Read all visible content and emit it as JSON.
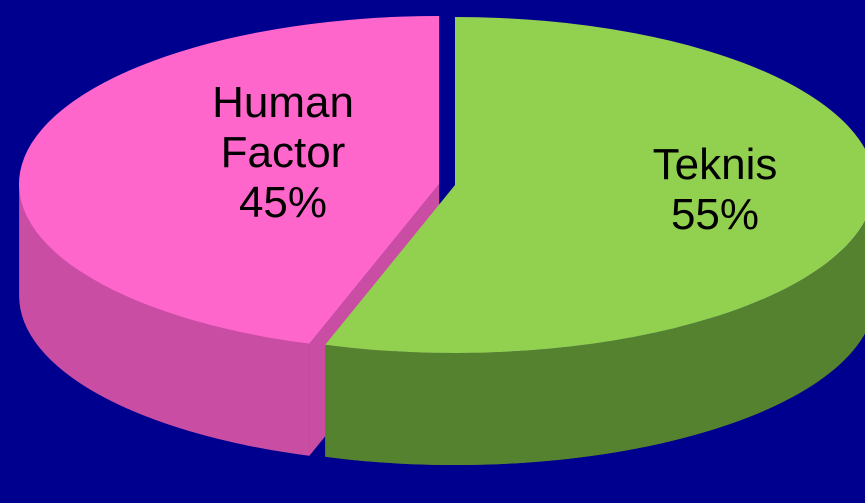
{
  "chart_data": {
    "type": "pie3d",
    "categories": [
      "Human Factor",
      "Teknis"
    ],
    "values": [
      45,
      55
    ],
    "value_labels": [
      "45%",
      "55%"
    ],
    "colors": [
      "#ff66cc",
      "#92d050"
    ],
    "side_colors": [
      "#c94ea3",
      "#55822f"
    ]
  }
}
